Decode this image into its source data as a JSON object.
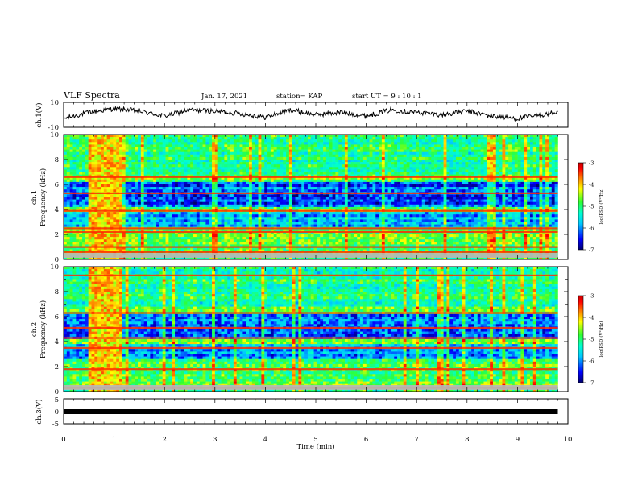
{
  "header": {
    "title": "VLF Spectra",
    "date": "Jan. 17, 2021",
    "station": "station= KAP",
    "start": "start  UT =   9 : 10 : 1"
  },
  "chart_data": [
    {
      "type": "line",
      "panel": "ch1-waveform",
      "ylabel": "ch.1(V)",
      "ylim": [
        -10,
        10
      ],
      "yticks": [
        "10",
        "-10"
      ],
      "xlim": [
        0,
        10
      ],
      "x": [
        0,
        0.5,
        1.0,
        1.5,
        2.0,
        2.5,
        3.0,
        3.5,
        4.0,
        4.5,
        5.0,
        5.5,
        6.0,
        6.5,
        7.0,
        7.5,
        8.0,
        8.5,
        9.0,
        9.5,
        9.8
      ],
      "y": [
        -3,
        2,
        5,
        3,
        -1,
        4,
        3,
        1,
        -2,
        4,
        0,
        2,
        -1,
        4,
        2,
        0,
        3,
        -1,
        -3,
        0,
        2
      ]
    },
    {
      "type": "heatmap",
      "panel": "ch1-spectrogram",
      "ylabel": "ch.1\nFrequency (kHz)",
      "ylim": [
        0,
        10
      ],
      "yticks": [
        "0",
        "2",
        "4",
        "6",
        "8",
        "10"
      ],
      "xlim": [
        0,
        10
      ],
      "data_x_end": 9.8,
      "colorbar": {
        "range": [
          -7,
          -3
        ],
        "ticks": [
          "-3",
          "-4",
          "-5",
          "-6",
          "-7"
        ],
        "label": "log(PSD)(V²/Hz)"
      },
      "bright_lines_khz": [
        0.6,
        1.0,
        2.2,
        2.5,
        3.9,
        5.3,
        6.6
      ],
      "burst_interval_min": [
        0.5,
        1.15
      ]
    },
    {
      "type": "heatmap",
      "panel": "ch2-spectrogram",
      "ylabel": "ch.2\nFrequency (kHz)",
      "ylim": [
        0,
        10
      ],
      "yticks": [
        "0",
        "2",
        "4",
        "6",
        "8",
        "10"
      ],
      "xlim": [
        0,
        10
      ],
      "data_x_end": 9.8,
      "colorbar": {
        "range": [
          -7,
          -3
        ],
        "ticks": [
          "-3",
          "-4",
          "-5",
          "-6",
          "-7"
        ],
        "label": "log(PSD)(V²/Hz)"
      },
      "bright_lines_khz": [
        0.3,
        1.8,
        3.5,
        4.3,
        5.1,
        6.3,
        9.3
      ],
      "burst_interval_min": [
        0.5,
        1.15
      ]
    },
    {
      "type": "line",
      "panel": "ch3-waveform",
      "ylabel": "ch.3(V)",
      "ylim": [
        -5,
        5
      ],
      "yticks": [
        "5",
        "0",
        "-5"
      ],
      "xlim": [
        0,
        10
      ],
      "x": [
        0,
        9.8
      ],
      "y": [
        0,
        0
      ]
    }
  ],
  "xaxis": {
    "label": "Time (min)",
    "ticks": [
      "0",
      "1",
      "2",
      "3",
      "4",
      "5",
      "6",
      "7",
      "8",
      "9",
      "10"
    ]
  },
  "colors": {
    "line": "#000000",
    "background": "#ffffff",
    "colormap": [
      "#00006e",
      "#0000ff",
      "#00c8ff",
      "#00ffd0",
      "#30ff30",
      "#ffff00",
      "#ff8000",
      "#ff0000",
      "#c80000"
    ]
  }
}
